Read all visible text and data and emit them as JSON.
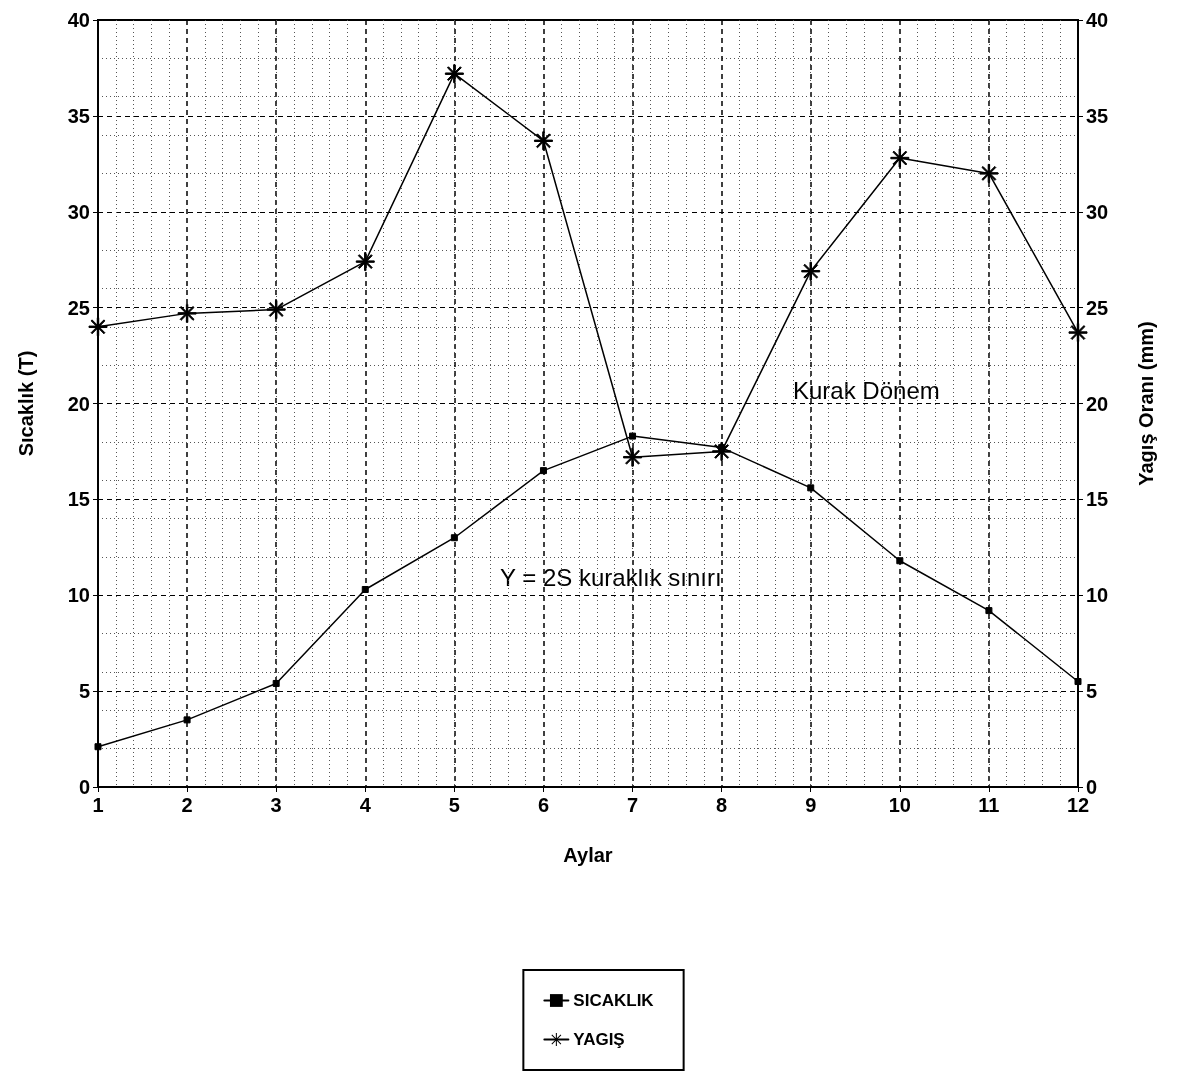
{
  "chart_data": {
    "type": "line",
    "xlabel": "Aylar",
    "ylabel": "Sıcaklık (T)",
    "y2label": "Yagış Oranı (mm)",
    "x": [
      1,
      2,
      3,
      4,
      5,
      6,
      7,
      8,
      9,
      10,
      11,
      12
    ],
    "series": [
      {
        "name": "SICAKLIK",
        "color": "#000000",
        "marker": "square",
        "values": [
          2.1,
          3.5,
          5.4,
          10.3,
          13.0,
          16.5,
          18.3,
          17.7,
          15.6,
          11.8,
          9.2,
          5.5
        ]
      },
      {
        "name": "YAGIŞ",
        "color": "#000000",
        "marker": "star",
        "axis": "y2",
        "values": [
          24.0,
          24.7,
          24.9,
          27.4,
          37.2,
          33.7,
          17.2,
          17.5,
          26.9,
          32.8,
          32.0,
          23.7
        ]
      }
    ],
    "xlim": [
      1,
      12
    ],
    "xticks": [
      1,
      2,
      3,
      4,
      5,
      6,
      7,
      8,
      9,
      10,
      11,
      12
    ],
    "ylim": [
      0,
      40
    ],
    "yticks": [
      0,
      5,
      10,
      15,
      20,
      25,
      30,
      35,
      40
    ],
    "y2lim": [
      0,
      40
    ],
    "y2ticks": [
      0,
      5,
      10,
      15,
      20,
      25,
      30,
      35,
      40
    ],
    "annotations": [
      "Kurak Dönem",
      "Y = 2S kuraklık sınırı"
    ],
    "grid": true,
    "legend": "bottom",
    "line_style": "solid"
  }
}
